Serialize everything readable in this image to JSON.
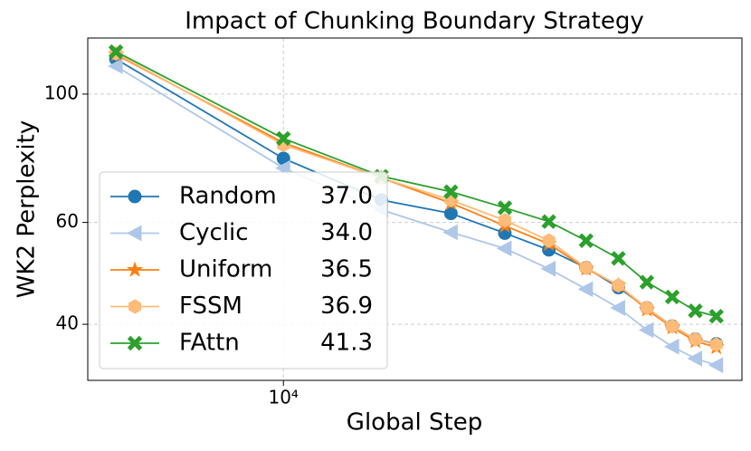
{
  "chart_data": {
    "type": "line",
    "title": "Impact of Chunking Boundary Strategy",
    "xlabel": "Global Step",
    "ylabel": "WK2 Perplexity",
    "x": [
      5000,
      10000,
      15000,
      20000,
      25000,
      30000,
      35000,
      40000,
      45000,
      50000,
      55000,
      60000
    ],
    "xscale": "log",
    "yscale": "log",
    "grid": true,
    "legend": "lower left",
    "xlim": [
      4450,
      66700
    ],
    "ylim": [
      32,
      125
    ],
    "xticks": [
      {
        "value": 10000,
        "label": "10⁴"
      }
    ],
    "yticks": [
      40,
      60,
      100
    ],
    "series": [
      {
        "name": "Random",
        "legend_value": "37.0",
        "color": "#1f77b4",
        "marker": "circle",
        "values": [
          115,
          77.4,
          65.6,
          62.2,
          57.5,
          53.8,
          50.1,
          46.3,
          42.7,
          39.7,
          37.7,
          37.0
        ]
      },
      {
        "name": "Cyclic",
        "legend_value": "34.0",
        "color": "#aec7e8",
        "marker": "triangle-left",
        "values": [
          111.8,
          74.5,
          63.1,
          57.7,
          54.1,
          49.9,
          46.0,
          42.7,
          39.1,
          36.6,
          34.9,
          34.0
        ]
      },
      {
        "name": "Uniform",
        "legend_value": "36.5",
        "color": "#ff7f0e",
        "marker": "star",
        "values": [
          117,
          82.4,
          71.6,
          64.8,
          59.2,
          55.1,
          49.9,
          46.7,
          42.4,
          39.5,
          37.4,
          36.5
        ]
      },
      {
        "name": "FSSM",
        "legend_value": "36.9",
        "color": "#ffbb78",
        "marker": "hexagon",
        "values": [
          117.6,
          81.7,
          71.6,
          65.6,
          60.5,
          55.8,
          50.1,
          46.7,
          42.7,
          39.7,
          37.7,
          36.9
        ]
      },
      {
        "name": "FAttn",
        "legend_value": "41.3",
        "color": "#2ca02c",
        "marker": "x",
        "values": [
          118.4,
          83.8,
          72.1,
          67.8,
          63.6,
          60.2,
          55.8,
          52.0,
          47.3,
          44.6,
          42.2,
          41.3
        ]
      }
    ]
  }
}
